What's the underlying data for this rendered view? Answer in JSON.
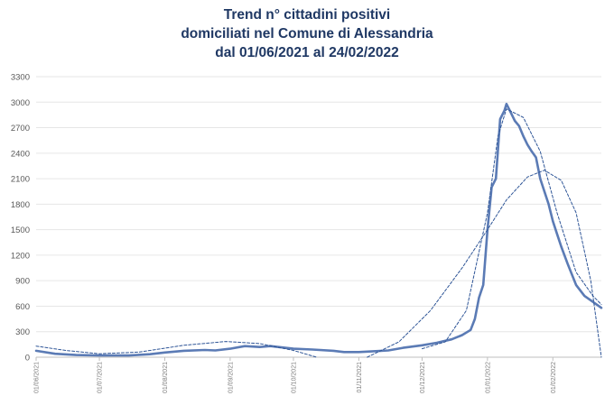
{
  "chart_data": {
    "type": "line",
    "title_lines": [
      "Trend n° cittadini positivi",
      "domiciliati nel Comune di Alessandria",
      "dal 01/06/2021 al 24/02/2022"
    ],
    "xlabel": "",
    "ylabel": "",
    "ylim": [
      0,
      3300
    ],
    "yticks": [
      0,
      300,
      600,
      900,
      1200,
      1500,
      1800,
      2100,
      2400,
      2700,
      3000,
      3300
    ],
    "xlim": [
      "2021-06-01",
      "2022-02-24"
    ],
    "xticks": [
      "01/06/2021",
      "01/07/2021",
      "01/08/2021",
      "01/09/2021",
      "01/10/2021",
      "01/11/2021",
      "01/12/2021",
      "01/01/2022",
      "01/02/2022"
    ],
    "grid": true,
    "legend": "none",
    "colors": {
      "series": "#5b7bb5",
      "trend": "#2e5597",
      "grid": "#e6e6e6",
      "title": "#1f3864"
    },
    "series": [
      {
        "style": "solid",
        "x": [
          "2021-06-01",
          "2021-06-10",
          "2021-06-20",
          "2021-07-01",
          "2021-07-15",
          "2021-07-25",
          "2021-08-01",
          "2021-08-10",
          "2021-08-20",
          "2021-08-25",
          "2021-09-01",
          "2021-09-08",
          "2021-09-15",
          "2021-09-20",
          "2021-10-01",
          "2021-10-10",
          "2021-10-20",
          "2021-10-25",
          "2021-11-01",
          "2021-11-08",
          "2021-11-15",
          "2021-11-22",
          "2021-12-01",
          "2021-12-08",
          "2021-12-15",
          "2021-12-20",
          "2021-12-24",
          "2021-12-26",
          "2021-12-28",
          "2021-12-30",
          "2022-01-01",
          "2022-01-03",
          "2022-01-05",
          "2022-01-07",
          "2022-01-09",
          "2022-01-10",
          "2022-01-12",
          "2022-01-14",
          "2022-01-16",
          "2022-01-18",
          "2022-01-20",
          "2022-01-22",
          "2022-01-24",
          "2022-01-26",
          "2022-01-28",
          "2022-01-30",
          "2022-02-01",
          "2022-02-03",
          "2022-02-05",
          "2022-02-08",
          "2022-02-12",
          "2022-02-16",
          "2022-02-20",
          "2022-02-24"
        ],
        "y": [
          75,
          40,
          25,
          20,
          20,
          35,
          55,
          75,
          85,
          80,
          100,
          130,
          120,
          130,
          100,
          90,
          75,
          60,
          60,
          70,
          80,
          110,
          140,
          170,
          210,
          260,
          320,
          450,
          700,
          850,
          1500,
          2000,
          2100,
          2800,
          2900,
          2980,
          2880,
          2780,
          2720,
          2600,
          2500,
          2420,
          2350,
          2100,
          1950,
          1800,
          1600,
          1450,
          1300,
          1100,
          850,
          720,
          650,
          580
        ]
      },
      {
        "style": "dashed",
        "x": [
          "2021-06-01",
          "2021-06-15",
          "2021-07-01",
          "2021-07-20",
          "2021-08-10",
          "2021-08-30",
          "2021-09-15",
          "2021-10-01",
          "2021-10-12"
        ],
        "y": [
          130,
          80,
          40,
          60,
          140,
          185,
          160,
          80,
          0
        ]
      },
      {
        "style": "dashed",
        "x": [
          "2021-11-05",
          "2021-11-20",
          "2021-12-05",
          "2021-12-20",
          "2022-01-01",
          "2022-01-10",
          "2022-01-20",
          "2022-01-28",
          "2022-02-05",
          "2022-02-12",
          "2022-02-19",
          "2022-02-24"
        ],
        "y": [
          0,
          180,
          550,
          1050,
          1500,
          1850,
          2120,
          2200,
          2080,
          1700,
          900,
          0
        ]
      },
      {
        "style": "dashed",
        "x": [
          "2021-12-01",
          "2021-12-12",
          "2021-12-22",
          "2022-01-01",
          "2022-01-06",
          "2022-01-10",
          "2022-01-18",
          "2022-01-26",
          "2022-02-03",
          "2022-02-12",
          "2022-02-20",
          "2022-02-24"
        ],
        "y": [
          100,
          180,
          550,
          1700,
          2600,
          2920,
          2820,
          2420,
          1700,
          1000,
          720,
          620
        ]
      }
    ]
  }
}
